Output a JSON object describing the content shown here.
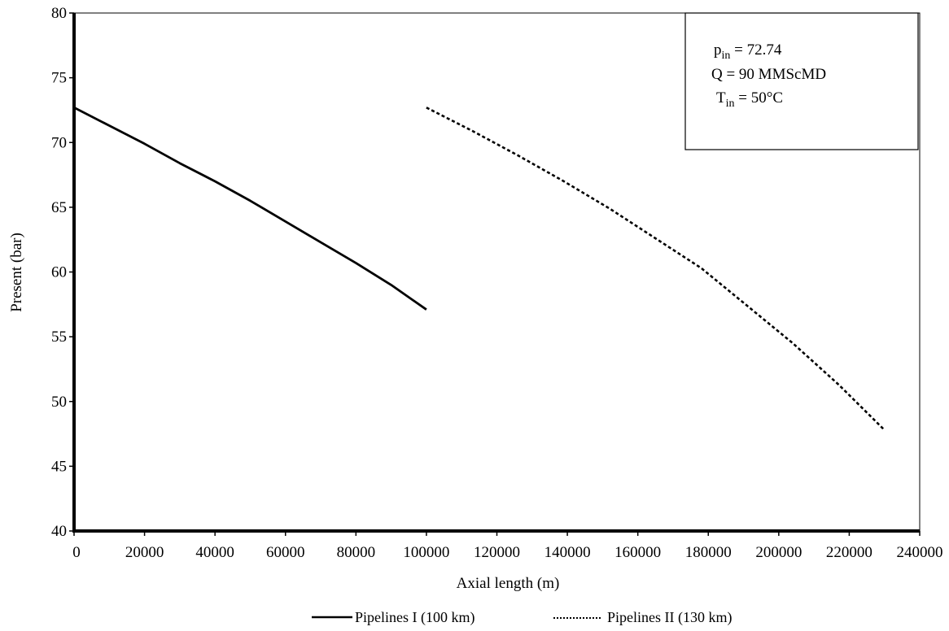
{
  "chart_data": {
    "type": "line",
    "title": "",
    "xlabel": "Axial length (m)",
    "ylabel": "Present (bar)",
    "xlim": [
      0,
      240000
    ],
    "ylim": [
      40,
      80
    ],
    "x_ticks": [
      "0",
      "20000",
      "40000",
      "60000",
      "80000",
      "100000",
      "120000",
      "140000",
      "160000",
      "180000",
      "200000",
      "220000",
      "240000"
    ],
    "y_ticks": [
      "40",
      "45",
      "50",
      "55",
      "60",
      "65",
      "70",
      "75",
      "80"
    ],
    "grid": false,
    "legend_position": "bottom",
    "series": [
      {
        "name": "Pipelines I (100 km)",
        "style": "solid",
        "color": "#000000",
        "x": [
          0,
          10000,
          20000,
          30000,
          40000,
          50000,
          60000,
          70000,
          80000,
          90000,
          100000
        ],
        "y": [
          72.7,
          71.3,
          69.9,
          68.4,
          67.0,
          65.5,
          63.9,
          62.3,
          60.7,
          59.0,
          57.1
        ]
      },
      {
        "name": "Pipelines II (130 km)",
        "style": "dotted",
        "color": "#000000",
        "x": [
          100000,
          113000,
          126000,
          139000,
          152000,
          165000,
          178000,
          191000,
          204000,
          217000,
          230000
        ],
        "y": [
          72.7,
          70.9,
          69.0,
          67.0,
          64.9,
          62.6,
          60.3,
          57.4,
          54.5,
          51.3,
          47.8
        ]
      }
    ],
    "annotation": {
      "lines": [
        {
          "base": "p",
          "sub": "in",
          "rest": " = 72.74"
        },
        {
          "base": "Q = 90 MMScMD",
          "sub": "",
          "rest": ""
        },
        {
          "base": "T",
          "sub": "in",
          "rest": " = 50°C"
        }
      ]
    }
  }
}
